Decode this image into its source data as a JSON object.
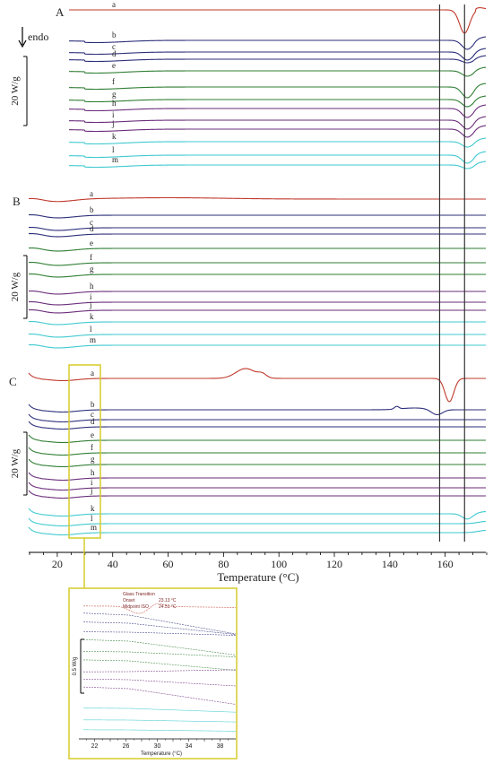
{
  "chart_data": {
    "type": "line",
    "xlabel": "Temperature (°C)",
    "x_ticks": [
      20,
      40,
      60,
      80,
      100,
      120,
      140,
      160
    ],
    "xlim": [
      10,
      175
    ],
    "vlines": [
      158,
      167
    ],
    "endo_label": "endo",
    "curve_labels": [
      "a",
      "b",
      "c",
      "d",
      "e",
      "f",
      "g",
      "h",
      "i",
      "j",
      "k",
      "l",
      "m"
    ],
    "colors": {
      "red": "#c0392b",
      "navy": "#2c2f7a",
      "green": "#2e7d32",
      "purple": "#6a2c7a",
      "cyan": "#3fc9cf",
      "frame": "#333333",
      "highlight": "#d6cc2a"
    },
    "curve_colors": [
      "red",
      "navy",
      "navy",
      "navy",
      "green",
      "green",
      "green",
      "purple",
      "purple",
      "purple",
      "cyan",
      "cyan",
      "cyan"
    ],
    "panels": [
      {
        "name": "A",
        "scale_label": "20 W/g"
      },
      {
        "name": "B",
        "scale_label": "20 W/g"
      },
      {
        "name": "C",
        "scale_label": "20 W/g"
      }
    ],
    "inset": {
      "scale_label": "0.5 W/g",
      "xlabel": "Temperature (°C)",
      "x_ticks": [
        22,
        26,
        30,
        34,
        38
      ],
      "xlim": [
        20,
        40
      ],
      "annotation": [
        "Glass Transition",
        "Onset",
        "23.13 °C",
        "Midpoint ISO",
        "24.51 °C"
      ]
    }
  }
}
